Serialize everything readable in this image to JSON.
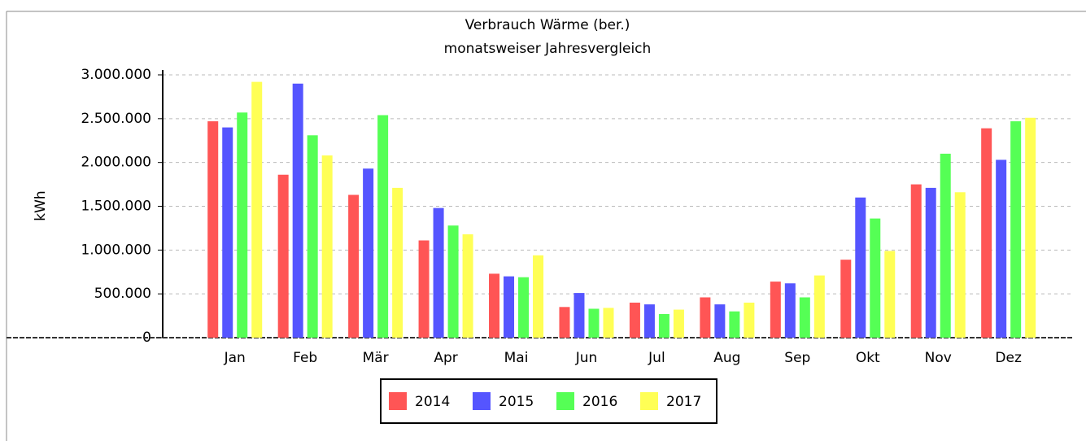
{
  "chart_data": {
    "type": "bar",
    "title": "Verbrauch Wärme (ber.)",
    "subtitle": "monatsweiser Jahresvergleich",
    "y_label": "kWh",
    "categories": [
      "Jan",
      "Feb",
      "Mär",
      "Apr",
      "Mai",
      "Jun",
      "Jul",
      "Aug",
      "Sep",
      "Okt",
      "Nov",
      "Dez"
    ],
    "series": [
      {
        "name": "2014",
        "color": "#ff5555",
        "values": [
          2470000,
          1860000,
          1630000,
          1110000,
          730000,
          350000,
          400000,
          460000,
          640000,
          890000,
          1750000,
          2390000
        ]
      },
      {
        "name": "2015",
        "color": "#5555ff",
        "values": [
          2400000,
          2900000,
          1930000,
          1480000,
          700000,
          510000,
          380000,
          380000,
          620000,
          1600000,
          1710000,
          2030000
        ]
      },
      {
        "name": "2016",
        "color": "#55ff55",
        "values": [
          2570000,
          2310000,
          2540000,
          1280000,
          690000,
          330000,
          270000,
          300000,
          460000,
          1360000,
          2100000,
          2470000
        ]
      },
      {
        "name": "2017",
        "color": "#ffff55",
        "values": [
          2920000,
          2080000,
          1710000,
          1180000,
          940000,
          340000,
          320000,
          400000,
          710000,
          990000,
          1660000,
          2510000
        ]
      }
    ],
    "ylim": [
      0,
      3000000
    ],
    "yticks": [
      0,
      {
        "value": 500000,
        "label": "500.000"
      },
      {
        "value": 1000000,
        "label": "1.000.000"
      },
      {
        "value": 1500000,
        "label": "1.500.000"
      },
      {
        "value": 2000000,
        "label": "2.000.000"
      },
      {
        "value": 2500000,
        "label": "2.500.000"
      },
      {
        "value": 3000000,
        "label": "3.000.000"
      }
    ],
    "grid": true,
    "legend": "bottom"
  }
}
